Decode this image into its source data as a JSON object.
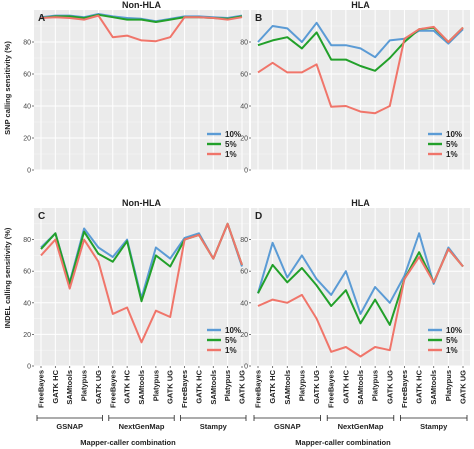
{
  "figure": {
    "x_axis_title": "Mapper-caller combination",
    "group_labels": [
      "GSNAP",
      "NextGenMap",
      "Stampy"
    ],
    "y_axis_titles": [
      "SNP calling sensitivity (%)",
      "INDEL calling sensitivity (%)"
    ],
    "colors": {
      "10%": "#5b9bd5",
      "5%": "#22a02a",
      "1%": "#f0756a",
      "panel_bg": "#ebebeb",
      "grid": "#ffffff"
    }
  },
  "chart_data": [
    {
      "type": "line",
      "panel": "A",
      "title": "Non-HLA",
      "ylabel": "SNP calling sensitivity (%)",
      "xlabel": "",
      "ylim": [
        0,
        100
      ],
      "yticks": [
        0,
        20,
        40,
        60,
        80
      ],
      "grid": true,
      "legend": "bottom-right",
      "categories": [
        "FreeBayes",
        "GATK HC",
        "SAMtools",
        "Platypus",
        "GATK UG",
        "FreeBayes",
        "GATK HC",
        "SAMtools",
        "Platypus",
        "GATK UG",
        "FreeBayes",
        "GATK HC",
        "SAMtools",
        "Platypus",
        "GATK UG"
      ],
      "series": [
        {
          "name": "10%",
          "values": [
            95.5,
            96.5,
            96.5,
            95.5,
            97.5,
            96,
            95,
            94.5,
            93,
            94.5,
            96,
            96,
            95.5,
            95,
            96.5
          ]
        },
        {
          "name": "5%",
          "values": [
            95,
            96,
            96,
            95,
            97,
            95.5,
            94,
            94,
            92.5,
            94,
            95.5,
            95.5,
            95,
            94.5,
            96
          ]
        },
        {
          "name": "1%",
          "values": [
            95,
            95.5,
            95,
            94,
            96.5,
            83,
            84,
            81,
            80.5,
            83,
            95.5,
            95.5,
            95,
            94,
            95.5
          ]
        }
      ]
    },
    {
      "type": "line",
      "panel": "B",
      "title": "HLA",
      "ylabel": "",
      "xlabel": "",
      "ylim": [
        0,
        100
      ],
      "yticks": [
        0,
        20,
        40,
        60,
        80
      ],
      "grid": true,
      "legend": "bottom-right",
      "categories": [
        "FreeBayes",
        "GATK HC",
        "SAMtools",
        "Platypus",
        "GATK UG",
        "FreeBayes",
        "GATK HC",
        "SAMtools",
        "Platypus",
        "GATK UG",
        "FreeBayes",
        "GATK HC",
        "SAMtools",
        "Platypus",
        "GATK UG"
      ],
      "series": [
        {
          "name": "10%",
          "values": [
            80,
            90,
            88.5,
            80,
            92,
            78,
            78,
            76,
            70.5,
            81,
            82,
            87,
            87,
            79,
            88
          ]
        },
        {
          "name": "5%",
          "values": [
            78,
            81,
            83,
            76,
            86,
            69,
            69,
            65,
            62,
            70,
            80,
            88,
            89,
            80,
            89
          ]
        },
        {
          "name": "1%",
          "values": [
            61,
            67,
            61,
            61,
            66,
            39.5,
            40,
            36.5,
            35.5,
            40,
            82,
            88,
            89.5,
            80,
            89
          ]
        }
      ]
    },
    {
      "type": "line",
      "panel": "C",
      "title": "Non-HLA",
      "ylabel": "INDEL calling sensitivity (%)",
      "xlabel": "Mapper-caller combination",
      "ylim": [
        0,
        100
      ],
      "yticks": [
        0,
        20,
        40,
        60,
        80
      ],
      "grid": true,
      "legend": "bottom-right",
      "categories": [
        "FreeBayes",
        "GATK HC",
        "SAMtools",
        "Platypus",
        "GATK UG",
        "FreeBayes",
        "GATK HC",
        "SAMtools",
        "Platypus",
        "GATK UG",
        "FreeBayes",
        "GATK HC",
        "SAMtools",
        "Platypus",
        "GATK UG"
      ],
      "series": [
        {
          "name": "10%",
          "values": [
            75,
            84,
            53,
            87,
            75,
            69,
            80,
            43,
            75,
            68,
            81,
            84,
            68,
            90,
            63
          ]
        },
        {
          "name": "5%",
          "values": [
            74,
            84,
            52,
            85,
            71,
            66,
            79,
            41,
            70,
            63,
            80,
            83,
            68,
            90,
            64
          ]
        },
        {
          "name": "1%",
          "values": [
            70,
            80,
            49,
            80,
            66,
            33,
            37,
            15,
            35,
            31,
            80,
            83,
            68,
            90,
            64
          ]
        }
      ]
    },
    {
      "type": "line",
      "panel": "D",
      "title": "HLA",
      "ylabel": "",
      "xlabel": "Mapper-caller combination",
      "ylim": [
        0,
        100
      ],
      "yticks": [
        0,
        20,
        40,
        60,
        80
      ],
      "grid": true,
      "legend": "bottom-right",
      "categories": [
        "FreeBayes",
        "GATK HC",
        "SAMtools",
        "Platypus",
        "GATK UG",
        "FreeBayes",
        "GATK HC",
        "SAMtools",
        "Platypus",
        "GATK UG",
        "FreeBayes",
        "GATK HC",
        "SAMtools",
        "Platypus",
        "GATK UG"
      ],
      "series": [
        {
          "name": "10%",
          "values": [
            46,
            78,
            56,
            70,
            55,
            45,
            60,
            33,
            50,
            40,
            57,
            84,
            52,
            75,
            63
          ]
        },
        {
          "name": "5%",
          "values": [
            46,
            64,
            53,
            62,
            51,
            38,
            48,
            27,
            42,
            26,
            55,
            72,
            53,
            74,
            63
          ]
        },
        {
          "name": "1%",
          "values": [
            38,
            42,
            40,
            45,
            30,
            9,
            12,
            6,
            12,
            10,
            55,
            69,
            53,
            74,
            63
          ]
        }
      ]
    }
  ]
}
